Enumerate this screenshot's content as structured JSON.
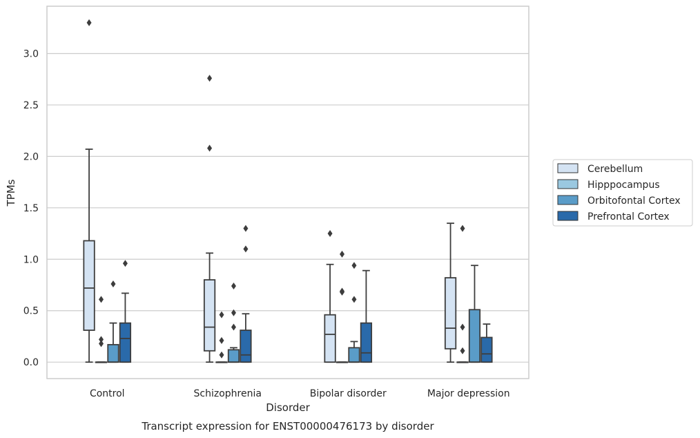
{
  "chart_data": {
    "type": "box",
    "title": "",
    "caption": "Transcript expression for ENST00000476173 by disorder",
    "xlabel": "Disorder",
    "ylabel": "TPMs",
    "ylim": [
      -0.16,
      3.46
    ],
    "yticks": [
      0.0,
      0.5,
      1.0,
      1.5,
      2.0,
      2.5,
      3.0
    ],
    "ytick_labels": [
      "0.0",
      "0.5",
      "1.0",
      "1.5",
      "2.0",
      "2.5",
      "3.0"
    ],
    "grid": "horizontal",
    "legend_position": "right",
    "categories": [
      "Control",
      "Schizophrenia",
      "Bipolar disorder",
      "Major depression"
    ],
    "series": [
      {
        "name": "Cerebellum",
        "color": "#d4e3f3",
        "boxes": [
          {
            "whisker_low": 0.0,
            "q1": 0.31,
            "median": 0.72,
            "q3": 1.18,
            "whisker_high": 2.07,
            "outliers": [
              3.3
            ]
          },
          {
            "whisker_low": 0.0,
            "q1": 0.11,
            "median": 0.34,
            "q3": 0.8,
            "whisker_high": 1.06,
            "outliers": [
              2.76,
              2.08
            ]
          },
          {
            "whisker_low": 0.0,
            "q1": 0.0,
            "median": 0.27,
            "q3": 0.46,
            "whisker_high": 0.95,
            "outliers": [
              1.25
            ]
          },
          {
            "whisker_low": 0.0,
            "q1": 0.13,
            "median": 0.33,
            "q3": 0.82,
            "whisker_high": 1.35,
            "outliers": []
          }
        ]
      },
      {
        "name": "Hipppocampus",
        "color": "#9ac8e0",
        "boxes": [
          {
            "whisker_low": 0.0,
            "q1": 0.0,
            "median": 0.0,
            "q3": 0.0,
            "whisker_high": 0.0,
            "outliers": [
              0.61,
              0.22,
              0.18
            ]
          },
          {
            "whisker_low": 0.0,
            "q1": 0.0,
            "median": 0.0,
            "q3": 0.0,
            "whisker_high": 0.0,
            "outliers": [
              0.46,
              0.21,
              0.07
            ]
          },
          {
            "whisker_low": 0.0,
            "q1": 0.0,
            "median": 0.0,
            "q3": 0.0,
            "whisker_high": 0.0,
            "outliers": [
              1.05,
              0.69,
              0.68
            ]
          },
          {
            "whisker_low": 0.0,
            "q1": 0.0,
            "median": 0.0,
            "q3": 0.0,
            "whisker_high": 0.0,
            "outliers": [
              1.3,
              0.34,
              0.11
            ]
          }
        ]
      },
      {
        "name": "Orbitofontal Cortex",
        "color": "#5a9cc8",
        "boxes": [
          {
            "whisker_low": 0.0,
            "q1": 0.0,
            "median": 0.0,
            "q3": 0.17,
            "whisker_high": 0.38,
            "outliers": [
              0.76
            ]
          },
          {
            "whisker_low": 0.0,
            "q1": 0.0,
            "median": 0.0,
            "q3": 0.12,
            "whisker_high": 0.14,
            "outliers": [
              0.74,
              0.48,
              0.34
            ]
          },
          {
            "whisker_low": 0.0,
            "q1": 0.0,
            "median": 0.0,
            "q3": 0.14,
            "whisker_high": 0.2,
            "outliers": [
              0.94,
              0.61
            ]
          },
          {
            "whisker_low": 0.0,
            "q1": 0.0,
            "median": 0.0,
            "q3": 0.51,
            "whisker_high": 0.94,
            "outliers": []
          }
        ]
      },
      {
        "name": "Prefrontal Cortex",
        "color": "#2a6aaa",
        "boxes": [
          {
            "whisker_low": 0.0,
            "q1": 0.0,
            "median": 0.23,
            "q3": 0.38,
            "whisker_high": 0.67,
            "outliers": [
              0.96
            ]
          },
          {
            "whisker_low": 0.0,
            "q1": 0.0,
            "median": 0.07,
            "q3": 0.31,
            "whisker_high": 0.47,
            "outliers": [
              1.3,
              1.1
            ]
          },
          {
            "whisker_low": 0.0,
            "q1": 0.0,
            "median": 0.09,
            "q3": 0.38,
            "whisker_high": 0.89,
            "outliers": []
          },
          {
            "whisker_low": 0.0,
            "q1": 0.0,
            "median": 0.08,
            "q3": 0.24,
            "whisker_high": 0.37,
            "outliers": []
          }
        ]
      }
    ]
  }
}
